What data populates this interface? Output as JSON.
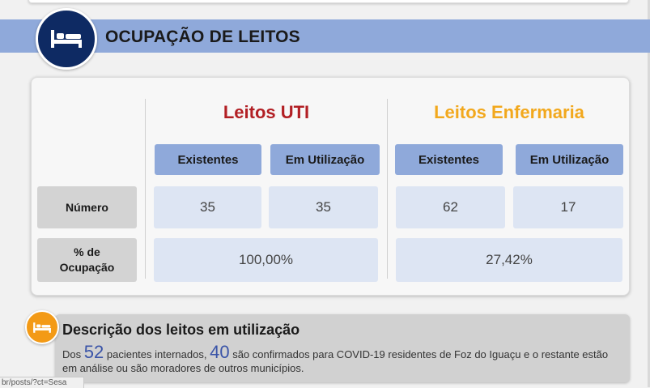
{
  "header": {
    "title": "OCUPAÇÃO DE LEITOS",
    "icon": "bed-icon"
  },
  "colors": {
    "header_bar": "#8fa9da",
    "icon_circle": "#0e2a63",
    "uti_title": "#b21f24",
    "enf_title": "#f2a81d",
    "desc_icon": "#f39a16",
    "highlight_number": "#3a54a8"
  },
  "table": {
    "uti": {
      "title": "Leitos UTI",
      "col_existentes": "Existentes",
      "col_utilizacao": "Em Utilização",
      "numero_existentes": "35",
      "numero_utilizacao": "35",
      "ocupacao": "100,00%"
    },
    "enfermaria": {
      "title": "Leitos Enfermaria",
      "col_existentes": "Existentes",
      "col_utilizacao": "Em Utilização",
      "numero_existentes": "62",
      "numero_utilizacao": "17",
      "ocupacao": "27,42%"
    },
    "row_numero": "Número",
    "row_ocupacao_line1": "% de",
    "row_ocupacao_line2": "Ocupação"
  },
  "description": {
    "title": "Descrição dos leitos em utilização",
    "text_part1": "Dos",
    "internados": "52",
    "text_part2": "pacientes internados,",
    "confirmados": "40",
    "text_part3": "são confirmados para COVID-19 residentes de Foz do Iguaçu e o restante estão em análise ou são moradores de outros municípios."
  },
  "status_bar": {
    "url": "br/posts/?ct=Sesa"
  }
}
